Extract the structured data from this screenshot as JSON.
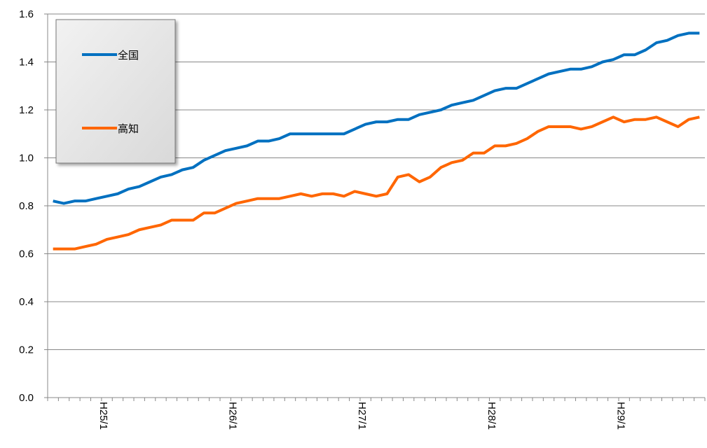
{
  "chart_data": {
    "type": "line",
    "categories": [
      null,
      null,
      null,
      null,
      "H25/1",
      null,
      null,
      null,
      null,
      null,
      null,
      null,
      null,
      null,
      null,
      null,
      "H26/1",
      null,
      null,
      null,
      null,
      null,
      null,
      null,
      null,
      null,
      null,
      null,
      "H27/1",
      null,
      null,
      null,
      null,
      null,
      null,
      null,
      null,
      null,
      null,
      null,
      "H28/1",
      null,
      null,
      null,
      null,
      null,
      null,
      null,
      null,
      null,
      null,
      null,
      "H29/1",
      null,
      null,
      null,
      null,
      null,
      null,
      null,
      null
    ],
    "series": [
      {
        "name": "全国",
        "color": "#0070c0",
        "values": [
          0.82,
          0.81,
          0.82,
          0.82,
          0.83,
          0.84,
          0.85,
          0.87,
          0.88,
          0.9,
          0.92,
          0.93,
          0.95,
          0.96,
          0.99,
          1.01,
          1.03,
          1.04,
          1.05,
          1.07,
          1.07,
          1.08,
          1.1,
          1.1,
          1.1,
          1.1,
          1.1,
          1.1,
          1.12,
          1.14,
          1.15,
          1.15,
          1.16,
          1.16,
          1.18,
          1.19,
          1.2,
          1.22,
          1.23,
          1.24,
          1.26,
          1.28,
          1.29,
          1.29,
          1.31,
          1.33,
          1.35,
          1.36,
          1.37,
          1.37,
          1.38,
          1.4,
          1.41,
          1.43,
          1.43,
          1.45,
          1.48,
          1.49,
          1.51,
          1.52,
          1.52
        ]
      },
      {
        "name": "高知",
        "color": "#ff6600",
        "values": [
          0.62,
          0.62,
          0.62,
          0.63,
          0.64,
          0.66,
          0.67,
          0.68,
          0.7,
          0.71,
          0.72,
          0.74,
          0.74,
          0.74,
          0.77,
          0.77,
          0.79,
          0.81,
          0.82,
          0.83,
          0.83,
          0.83,
          0.84,
          0.85,
          0.84,
          0.85,
          0.85,
          0.84,
          0.86,
          0.85,
          0.84,
          0.85,
          0.92,
          0.93,
          0.9,
          0.92,
          0.96,
          0.98,
          0.99,
          1.02,
          1.02,
          1.05,
          1.05,
          1.06,
          1.08,
          1.11,
          1.13,
          1.13,
          1.13,
          1.12,
          1.13,
          1.15,
          1.17,
          1.15,
          1.16,
          1.16,
          1.17,
          1.15,
          1.13,
          1.16,
          1.17
        ]
      }
    ],
    "ylim": [
      0,
      1.6
    ],
    "yticks": [
      {
        "value": 0,
        "label": "0.0"
      },
      0.2,
      0.4,
      0.6,
      0.8,
      {
        "value": 1,
        "label": "1.0"
      },
      1.2,
      1.4,
      1.6
    ],
    "grid": true,
    "legend": "upper-left"
  }
}
